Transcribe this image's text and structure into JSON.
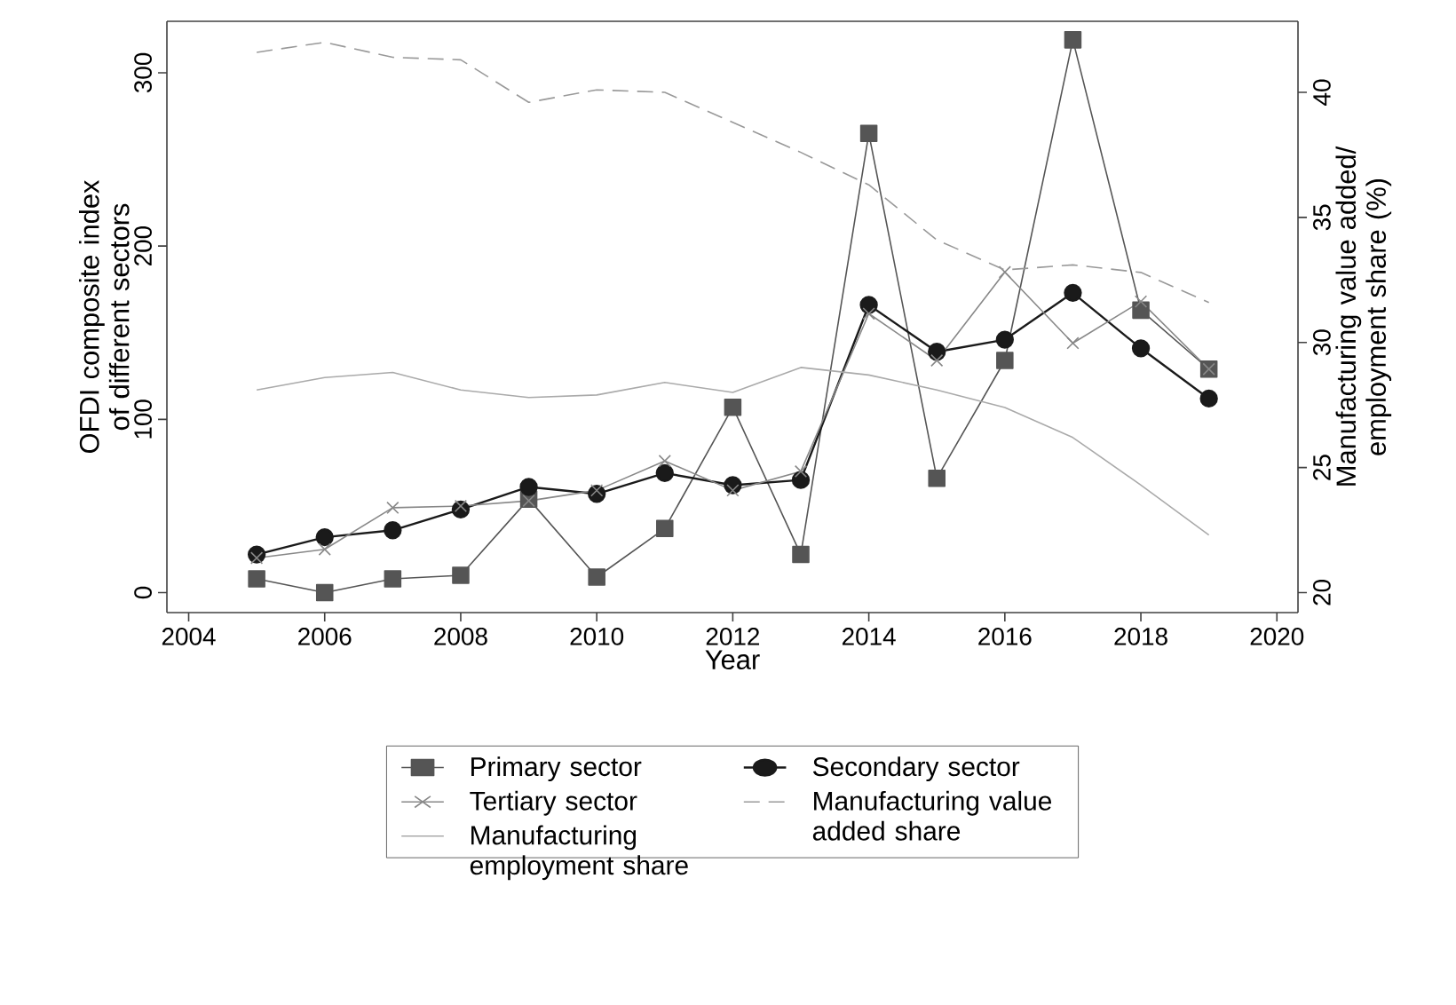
{
  "chart_data": {
    "type": "line",
    "xlabel": "Year",
    "ylabel": "OFDI composite index of different sectors",
    "y2label": "Manufacturing value added/ employment share (%)",
    "x": [
      2005,
      2006,
      2007,
      2008,
      2009,
      2010,
      2011,
      2012,
      2013,
      2014,
      2015,
      2016,
      2017,
      2018,
      2019
    ],
    "xlim": [
      2003.68,
      2020.31
    ],
    "xticks": [
      2004,
      2006,
      2008,
      2010,
      2012,
      2014,
      2016,
      2018,
      2020
    ],
    "ylim": [
      -11.5,
      329.7
    ],
    "yticks": [
      0,
      100,
      200,
      300
    ],
    "y2lim": [
      19.2,
      42.84
    ],
    "y2ticks": [
      20,
      25,
      30,
      35,
      40
    ],
    "grid": false,
    "legend": "bottom",
    "series": [
      {
        "name": "Primary sector",
        "color": "#555555",
        "marker": "square",
        "line_style": "solid",
        "values": [
          8,
          0,
          8,
          10,
          54,
          9,
          37,
          107,
          22,
          265,
          66,
          134,
          319,
          163,
          129
        ]
      },
      {
        "name": "Secondary sector",
        "color": "#1a1a1a",
        "marker": "circle",
        "line_style": "solid",
        "values": [
          22,
          32,
          36,
          48,
          61,
          57,
          69,
          62,
          65,
          166,
          139,
          146,
          173,
          141,
          112
        ]
      },
      {
        "name": "Tertiary sector",
        "color": "#888888",
        "marker": "cross",
        "line_style": "solid",
        "values": [
          20,
          25,
          49,
          50,
          53,
          59,
          76,
          59,
          70,
          161,
          134,
          185,
          144,
          168,
          129
        ]
      },
      {
        "name": "Manufacturing value added share",
        "color": "#999999",
        "marker": "none",
        "line_style": "dashed",
        "axis": "y2",
        "values": [
          41.6,
          42.0,
          41.4,
          41.3,
          39.6,
          40.1,
          40.0,
          38.8,
          37.6,
          36.3,
          34.1,
          32.9,
          33.1,
          32.8,
          31.6
        ]
      },
      {
        "name": "Manufacturing employment share",
        "color": "#aaaaaa",
        "marker": "none",
        "line_style": "solid",
        "axis": "y2",
        "values": [
          28.1,
          28.6,
          28.8,
          28.1,
          27.8,
          27.9,
          28.4,
          28.0,
          29.0,
          28.7,
          28.1,
          27.4,
          26.2,
          24.3,
          22.3
        ]
      }
    ]
  }
}
